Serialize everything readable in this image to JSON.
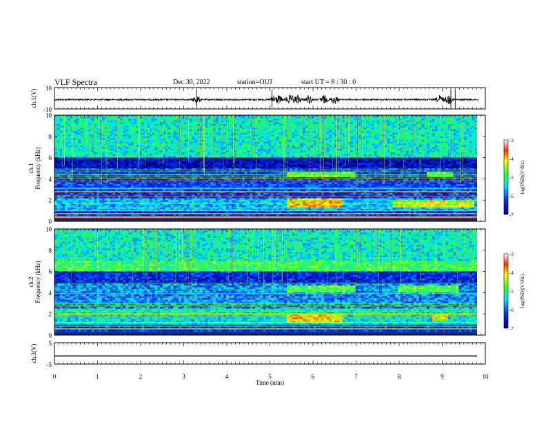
{
  "header": {
    "title": "VLF Spectra",
    "date": "Dec.30, 2022",
    "station": "station=OUJ",
    "start": "start UT = 8 : 30 : 0"
  },
  "chart_data": [
    {
      "type": "line",
      "panel": "ch1-waveform",
      "ylabel": "ch.1(V)",
      "ylim": [
        -10,
        10
      ],
      "yticks": [
        "10",
        "-10"
      ],
      "xlim": [
        0,
        10
      ],
      "baseline": 0,
      "bursts_min": [
        3.3,
        5.1,
        5.2,
        5.45,
        5.55,
        5.65,
        5.9,
        6.25,
        6.5,
        8.95,
        9.15
      ]
    },
    {
      "type": "heatmap",
      "panel": "ch1-spectrogram",
      "ylabel": "ch.1 Frequency (kHz)",
      "ylim": [
        0,
        10
      ],
      "yticks": [
        "0",
        "2",
        "4",
        "6",
        "8",
        "10"
      ],
      "xlim": [
        0,
        10
      ],
      "colorbar": {
        "label": "log(PSD)(V²/Hz)",
        "range": [
          -7,
          -3
        ],
        "ticks": [
          "-3",
          "-4",
          "-5",
          "-6",
          "-7"
        ]
      },
      "bands": [
        {
          "f_khz": [
            6.0,
            10.0
          ],
          "level": -5.3
        },
        {
          "f_khz": [
            5.0,
            6.0
          ],
          "level": -6.7
        },
        {
          "f_khz": [
            2.2,
            5.0
          ],
          "level": -6.2
        },
        {
          "f_khz": [
            1.0,
            2.2
          ],
          "level": -5.6
        },
        {
          "f_khz": [
            0.0,
            1.0
          ],
          "level": -6.3
        }
      ],
      "enhancements": [
        {
          "t_min": [
            5.4,
            6.7
          ],
          "f_khz": [
            1.3,
            2.1
          ],
          "level": -4.0
        },
        {
          "t_min": [
            7.9,
            9.8
          ],
          "f_khz": [
            1.3,
            2.0
          ],
          "level": -4.3
        },
        {
          "t_min": [
            5.4,
            7.0
          ],
          "f_khz": [
            4.1,
            4.7
          ],
          "level": -4.7
        },
        {
          "t_min": [
            8.7,
            9.3
          ],
          "f_khz": [
            4.1,
            4.7
          ],
          "level": -4.7
        }
      ]
    },
    {
      "type": "heatmap",
      "panel": "ch2-spectrogram",
      "ylabel": "ch.2 Frequency (kHz)",
      "ylim": [
        0,
        10
      ],
      "yticks": [
        "0",
        "2",
        "4",
        "6",
        "8",
        "10"
      ],
      "xlim": [
        0,
        10
      ],
      "colorbar": {
        "label": "log(PSD)(V²/Hz)",
        "range": [
          -7,
          -3
        ],
        "ticks": [
          "-3",
          "-4",
          "-5",
          "-6",
          "-7"
        ]
      },
      "bands": [
        {
          "f_khz": [
            7.0,
            10.0
          ],
          "level": -5.3
        },
        {
          "f_khz": [
            6.0,
            7.0
          ],
          "level": -4.9
        },
        {
          "f_khz": [
            4.8,
            6.0
          ],
          "level": -6.4
        },
        {
          "f_khz": [
            2.5,
            4.8
          ],
          "level": -5.8
        },
        {
          "f_khz": [
            1.0,
            2.5
          ],
          "level": -5.4
        },
        {
          "f_khz": [
            0.0,
            1.0
          ],
          "level": -6.3
        }
      ],
      "enhancements": [
        {
          "t_min": [
            5.4,
            6.7
          ],
          "f_khz": [
            1.2,
            2.0
          ],
          "level": -4.1
        },
        {
          "t_min": [
            8.8,
            9.2
          ],
          "f_khz": [
            1.3,
            2.0
          ],
          "level": -4.3
        },
        {
          "t_min": [
            5.4,
            7.0
          ],
          "f_khz": [
            4.0,
            4.7
          ],
          "level": -4.8
        },
        {
          "t_min": [
            8.0,
            9.4
          ],
          "f_khz": [
            4.0,
            4.7
          ],
          "level": -4.8
        }
      ]
    },
    {
      "type": "line",
      "panel": "ch3-waveform",
      "ylabel": "ch.3(V)",
      "ylim": [
        -5,
        5
      ],
      "yticks": [
        "5",
        "-5"
      ],
      "xlim": [
        0,
        10
      ],
      "constant_value": -1.2
    }
  ],
  "xaxis": {
    "label": "Time (min)",
    "ticks": [
      "0",
      "1",
      "2",
      "3",
      "4",
      "5",
      "6",
      "7",
      "8",
      "9",
      "10"
    ]
  }
}
